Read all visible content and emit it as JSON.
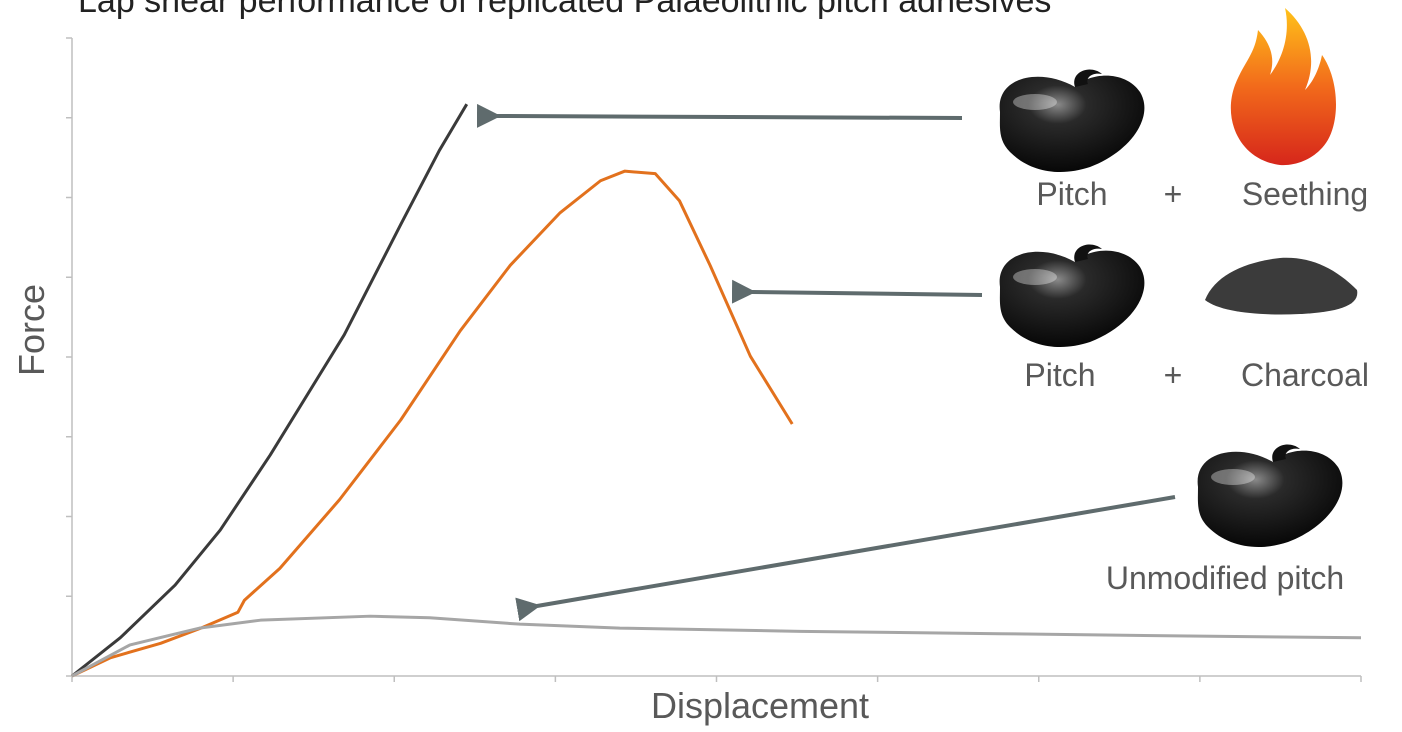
{
  "chart_data": {
    "type": "line",
    "title": "Lap shear performance of replicated Palaeolithic pitch adhesives",
    "x_label": "Displacement",
    "y_label": "Force",
    "xlim": [
      0,
      8
    ],
    "xticks": [
      0,
      1,
      2,
      3,
      4,
      5,
      6,
      7,
      8
    ],
    "ylim": [
      0,
      8
    ],
    "yticks": [
      0,
      1,
      2,
      3,
      4,
      5,
      6,
      7,
      8
    ],
    "series": [
      {
        "color": "#3a3a3a",
        "x": [
          0,
          0.3,
          0.64,
          0.92,
          1.23,
          1.69,
          2.04,
          2.28,
          2.45
        ],
        "values": [
          0,
          0.48,
          1.14,
          1.83,
          2.77,
          4.28,
          5.66,
          6.59,
          7.17
        ]
      },
      {
        "color": "#e2711d",
        "x": [
          0,
          0.24,
          0.55,
          0.8,
          1.03,
          1.07,
          1.29,
          1.66,
          2.04,
          2.41,
          2.72,
          3.03,
          3.28,
          3.43,
          3.62,
          3.77,
          3.96,
          4.21,
          4.47
        ],
        "values": [
          0,
          0.23,
          0.41,
          0.6,
          0.8,
          0.95,
          1.35,
          2.21,
          3.21,
          4.33,
          5.15,
          5.81,
          6.21,
          6.33,
          6.3,
          5.96,
          5.15,
          4.01,
          3.16
        ]
      },
      {
        "color": "#a6a6a6",
        "x": [
          0,
          0.36,
          0.79,
          1.17,
          1.85,
          2.22,
          2.78,
          3.4,
          4.52,
          5.76,
          7.0,
          8.0
        ],
        "values": [
          0,
          0.39,
          0.6,
          0.7,
          0.75,
          0.73,
          0.65,
          0.6,
          0.56,
          0.53,
          0.5,
          0.48
        ]
      }
    ],
    "annotations": [
      "Pitch",
      "+",
      "Seething",
      "Pitch",
      "+",
      "Charcoal",
      "Unmodified pitch"
    ]
  }
}
